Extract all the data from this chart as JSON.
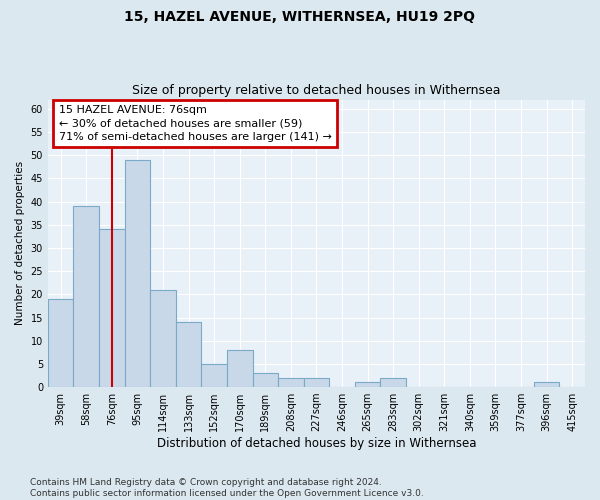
{
  "title": "15, HAZEL AVENUE, WITHERNSEA, HU19 2PQ",
  "subtitle": "Size of property relative to detached houses in Withernsea",
  "xlabel": "Distribution of detached houses by size in Withernsea",
  "ylabel": "Number of detached properties",
  "categories": [
    "39sqm",
    "58sqm",
    "76sqm",
    "95sqm",
    "114sqm",
    "133sqm",
    "152sqm",
    "170sqm",
    "189sqm",
    "208sqm",
    "227sqm",
    "246sqm",
    "265sqm",
    "283sqm",
    "302sqm",
    "321sqm",
    "340sqm",
    "359sqm",
    "377sqm",
    "396sqm",
    "415sqm"
  ],
  "values": [
    19,
    39,
    34,
    49,
    21,
    14,
    5,
    8,
    3,
    2,
    2,
    0,
    1,
    2,
    0,
    0,
    0,
    0,
    0,
    1,
    0
  ],
  "bar_color": "#c8d8e8",
  "bar_edge_color": "#7aaac8",
  "red_line_x": 2,
  "annotation_text": "15 HAZEL AVENUE: 76sqm\n← 30% of detached houses are smaller (59)\n71% of semi-detached houses are larger (141) →",
  "annotation_box_color": "#ffffff",
  "annotation_box_edge_color": "#cc0000",
  "ylim": [
    0,
    62
  ],
  "yticks": [
    0,
    5,
    10,
    15,
    20,
    25,
    30,
    35,
    40,
    45,
    50,
    55,
    60
  ],
  "bg_color": "#dce8f0",
  "plot_bg_color": "#e8f0f8",
  "grid_color": "#ffffff",
  "footer": "Contains HM Land Registry data © Crown copyright and database right 2024.\nContains public sector information licensed under the Open Government Licence v3.0.",
  "title_fontsize": 10,
  "subtitle_fontsize": 9,
  "xlabel_fontsize": 8.5,
  "ylabel_fontsize": 7.5,
  "tick_fontsize": 7,
  "annotation_fontsize": 8,
  "footer_fontsize": 6.5
}
